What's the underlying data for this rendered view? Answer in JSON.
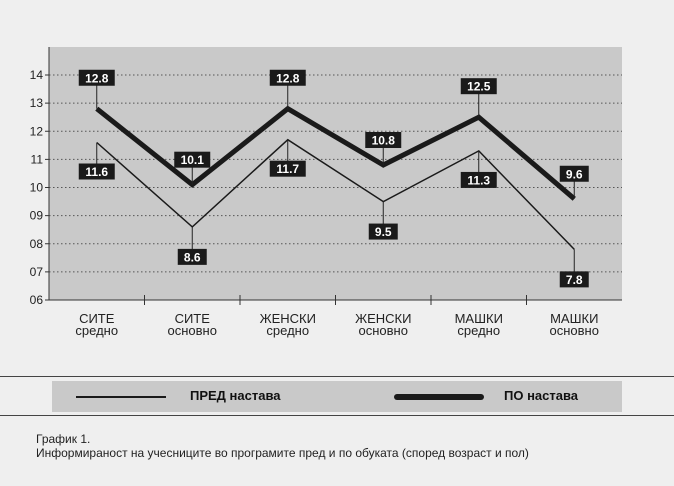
{
  "chart_data": {
    "type": "line",
    "categories": [
      [
        "СИТЕ",
        "средно"
      ],
      [
        "СИТЕ",
        "основно"
      ],
      [
        "ЖЕНСКИ",
        "средно"
      ],
      [
        "ЖЕНСКИ",
        "основно"
      ],
      [
        "МАШКИ",
        "средно"
      ],
      [
        "МАШКИ",
        "основно"
      ]
    ],
    "yticks": [
      "06",
      "07",
      "08",
      "09",
      "10",
      "11",
      "12",
      "13",
      "14"
    ],
    "ylim": [
      6,
      14
    ],
    "grid": true,
    "series": [
      {
        "name": "ПРЕД настава",
        "values": [
          11.6,
          8.6,
          11.7,
          9.5,
          11.3,
          7.8
        ],
        "labels": [
          "11.6",
          "8.6",
          "11.7",
          "9.5",
          "11.3",
          "7.8"
        ],
        "line_style": "thin"
      },
      {
        "name": "ПО настава",
        "values": [
          12.8,
          10.1,
          12.8,
          10.8,
          12.5,
          9.6
        ],
        "labels": [
          "12.8",
          "10.1",
          "12.8",
          "10.8",
          "12.5",
          "9.6"
        ],
        "line_style": "thick"
      }
    ]
  },
  "legend": {
    "before_label": "ПРЕД настава",
    "after_label": "ПО настава"
  },
  "caption": {
    "line1": "График 1.",
    "line2": "Информираност на учесниците во програмите пред и по обуката (според возраст и пол)"
  },
  "colors": {
    "plot_bg": "#c9c9c9",
    "page_bg": "#efefef",
    "line": "#1a1a1a",
    "label_bg": "#1a1a1a",
    "label_text": "#ffffff"
  }
}
